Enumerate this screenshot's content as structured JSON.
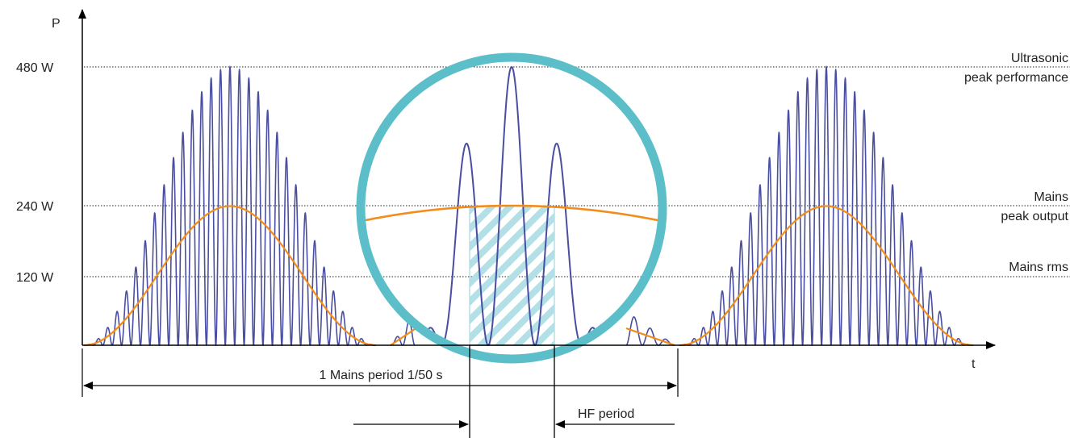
{
  "chart_data": {
    "type": "line",
    "title": "",
    "xlabel": "t",
    "ylabel": "P",
    "y_ticks": [
      {
        "label": "480 W",
        "value": 480
      },
      {
        "label": "240 W",
        "value": 240
      },
      {
        "label": "120 W",
        "value": 120
      }
    ],
    "reference_lines": [
      {
        "value": 480,
        "lines": [
          "Ultrasonic",
          "peak performance"
        ]
      },
      {
        "value": 240,
        "lines": [
          "Mains",
          "peak output"
        ]
      },
      {
        "value": 120,
        "lines": [
          "Mains rms"
        ]
      }
    ],
    "series": [
      {
        "role": "ultrasonic",
        "peak": 480,
        "color": "#4a4ea0"
      },
      {
        "role": "mains",
        "peak": 240,
        "color": "#f28c1a"
      }
    ],
    "zoom_color": "#5bbec9",
    "hatch_color": "#b3e0e6"
  },
  "annotations": {
    "mains_period": "1 Mains period 1/50 s",
    "hf_period": "HF period"
  }
}
